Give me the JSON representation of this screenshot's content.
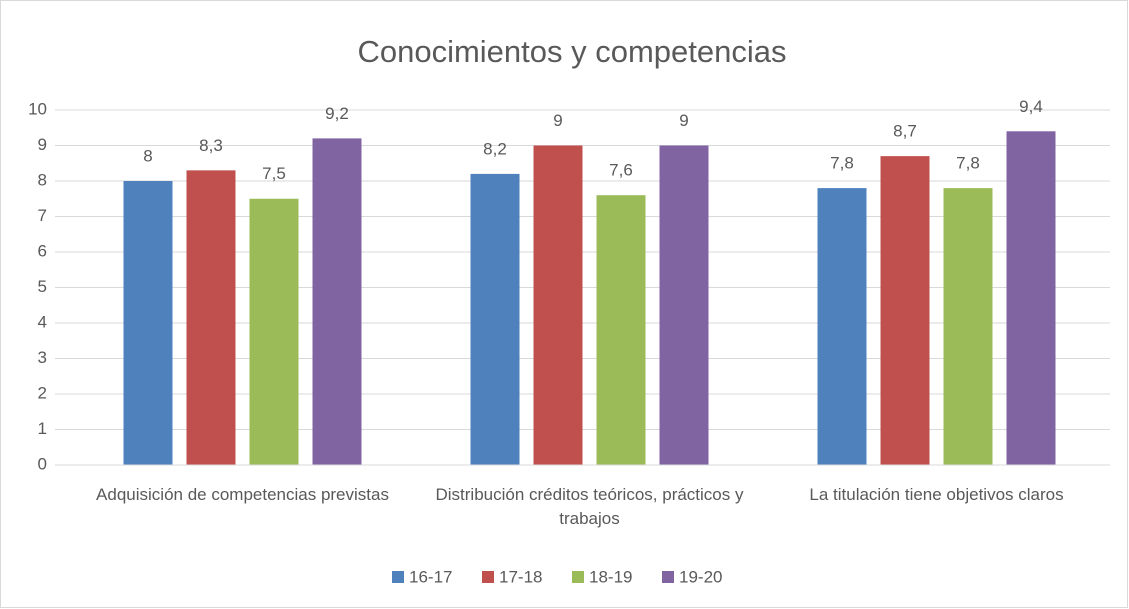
{
  "chart_data": {
    "type": "bar",
    "title": "Conocimientos y competencias",
    "categories": [
      "Adquisición de competencias previstas",
      "Distribución créditos teóricos, prácticos y trabajos",
      "La titulación tiene objetivos claros"
    ],
    "series": [
      {
        "name": "16-17",
        "color": "#4f81bd",
        "values": [
          8,
          8.2,
          7.8
        ],
        "value_labels": [
          "8",
          "8,2",
          "7,8"
        ]
      },
      {
        "name": "17-18",
        "color": "#c0504d",
        "values": [
          8.3,
          9,
          8.7
        ],
        "value_labels": [
          "8,3",
          "9",
          "8,7"
        ]
      },
      {
        "name": "18-19",
        "color": "#9bbb59",
        "values": [
          7.5,
          7.6,
          7.8
        ],
        "value_labels": [
          "7,5",
          "7,6",
          "7,8"
        ]
      },
      {
        "name": "19-20",
        "color": "#8064a2",
        "values": [
          9.2,
          9,
          9.4
        ],
        "value_labels": [
          "9,2",
          "9",
          "9,4"
        ]
      }
    ],
    "ylim": [
      0,
      10
    ],
    "yticks": [
      0,
      1,
      2,
      3,
      4,
      5,
      6,
      7,
      8,
      9,
      10
    ],
    "grid": true,
    "legend": "bottom"
  }
}
